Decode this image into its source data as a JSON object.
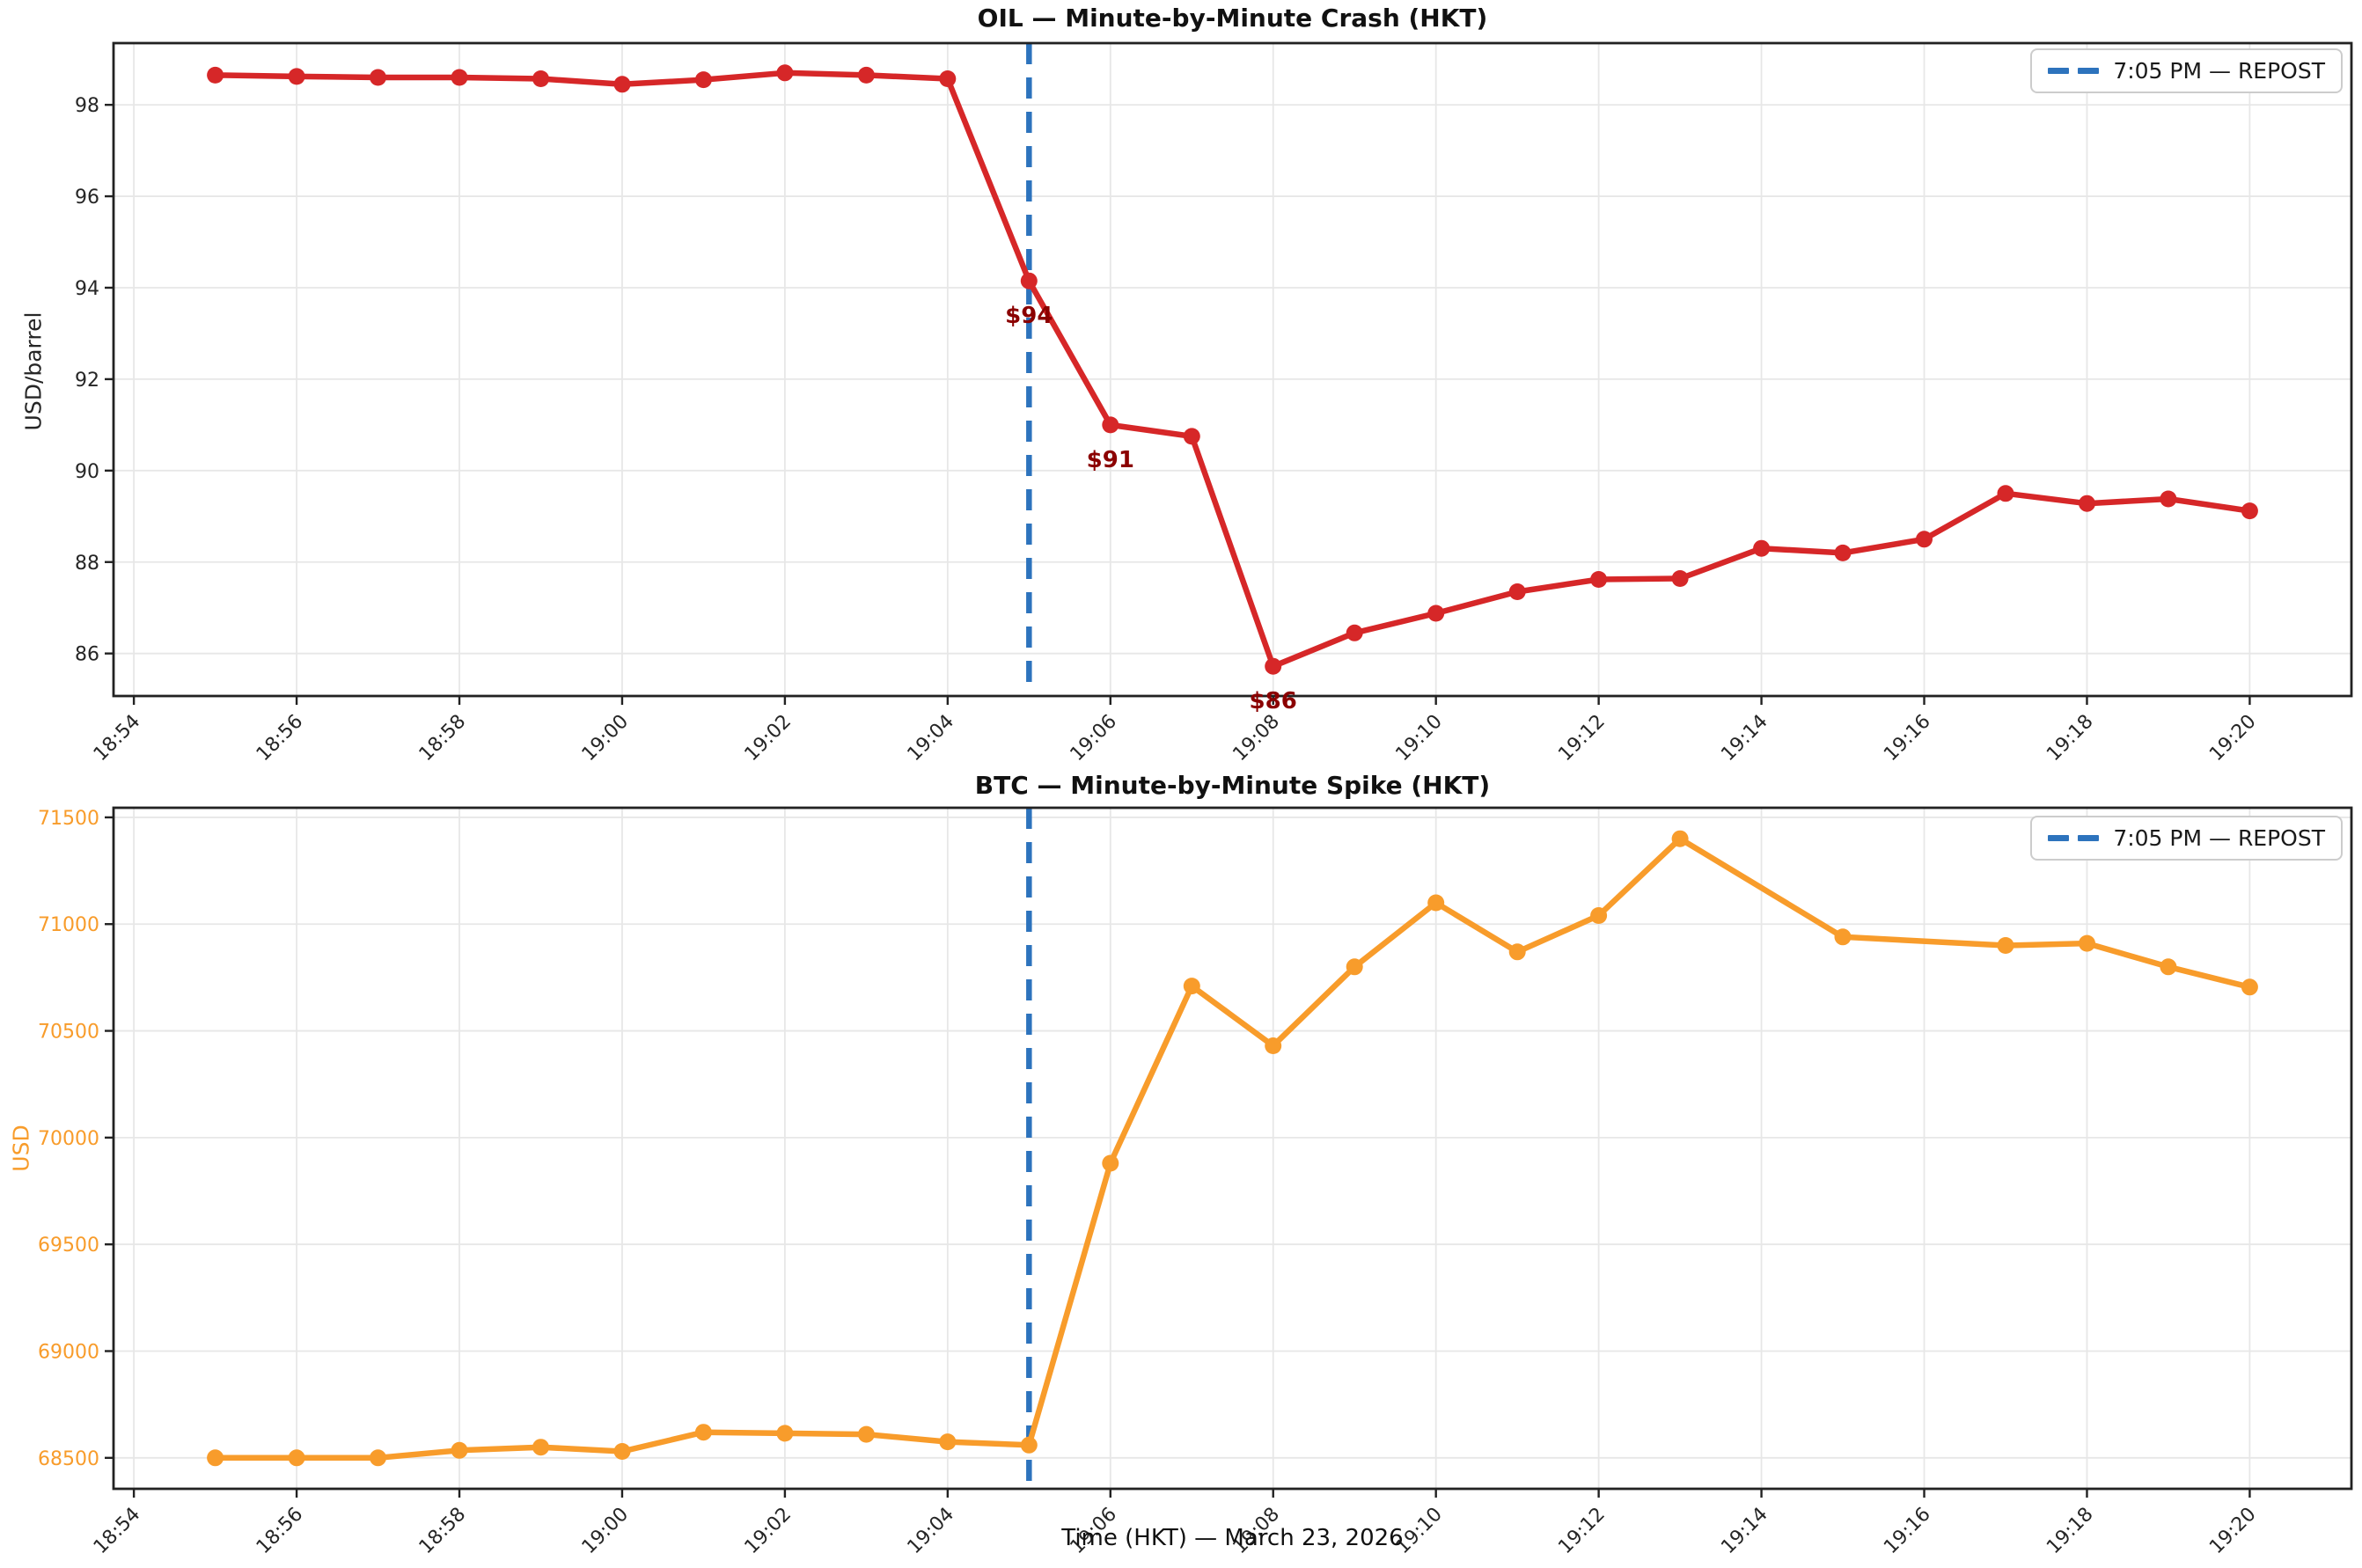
{
  "figure": {
    "xlabel": "Time (HKT) — March 23, 2026",
    "x_tick_labels": [
      "18:54",
      "18:56",
      "18:58",
      "19:00",
      "19:02",
      "19:04",
      "19:06",
      "19:08",
      "19:10",
      "19:12",
      "19:14",
      "19:16",
      "19:18",
      "19:20"
    ],
    "colors": {
      "background": "#ffffff",
      "grid": "#e7e7e7",
      "axis": "#222222",
      "tick_text": "#262626",
      "vline": "#2d73bd",
      "annotation": "#8b0000",
      "legend_border": "#cccccc",
      "legend_text": "#1a1a1a"
    }
  },
  "chart_data": [
    {
      "type": "line",
      "title": "OIL — Minute-by-Minute Crash (HKT)",
      "ylabel": "USD/barrel",
      "line_color": "#d62728",
      "tick_label_color": "#262626",
      "x_times": [
        "18:55",
        "18:56",
        "18:57",
        "18:58",
        "18:59",
        "19:00",
        "19:01",
        "19:02",
        "19:03",
        "19:04",
        "19:05",
        "19:06",
        "19:07",
        "19:08",
        "19:09",
        "19:10",
        "19:11",
        "19:12",
        "19:13",
        "19:14",
        "19:15",
        "19:16",
        "19:17",
        "19:18",
        "19:19",
        "19:20"
      ],
      "values": [
        98.65,
        98.62,
        98.6,
        98.6,
        98.57,
        98.45,
        98.55,
        98.7,
        98.65,
        98.57,
        94.15,
        91.0,
        90.75,
        85.72,
        86.45,
        86.88,
        87.35,
        87.62,
        87.64,
        88.3,
        88.2,
        88.5,
        89.5,
        89.28,
        89.38,
        89.12
      ],
      "y_ticks": [
        86,
        88,
        90,
        92,
        94,
        96,
        98
      ],
      "ylim": [
        85.07,
        99.35
      ],
      "grid": true,
      "legend_label": "7:05 PM — REPOST",
      "legend_position": "upper right",
      "vline_time": "19:05",
      "annotations": [
        {
          "text": "$94",
          "time": "19:05",
          "value": 94.15
        },
        {
          "text": "$91",
          "time": "19:06",
          "value": 91.0
        },
        {
          "text": "$86",
          "time": "19:08",
          "value": 85.72
        }
      ]
    },
    {
      "type": "line",
      "title": "BTC — Minute-by-Minute Spike (HKT)",
      "ylabel": "USD",
      "line_color": "#f89c2b",
      "tick_label_color": "#f89c2b",
      "x_times": [
        "18:55",
        "18:56",
        "18:57",
        "18:58",
        "18:59",
        "19:00",
        "19:01",
        "19:02",
        "19:03",
        "19:04",
        "19:05",
        "19:06",
        "19:07",
        "19:08",
        "19:09",
        "19:10",
        "19:11",
        "19:12",
        "19:13",
        "19:15",
        "19:17",
        "19:18",
        "19:19",
        "19:20"
      ],
      "values": [
        68500,
        68500,
        68500,
        68535,
        68550,
        68530,
        68620,
        68615,
        68610,
        68575,
        68560,
        69880,
        70710,
        70430,
        70800,
        71100,
        70870,
        71040,
        71400,
        70940,
        70900,
        70910,
        70800,
        70705
      ],
      "y_ticks": [
        68500,
        69000,
        69500,
        70000,
        70500,
        71000,
        71500
      ],
      "ylim": [
        68355,
        71545
      ],
      "grid": true,
      "legend_label": "7:05 PM — REPOST",
      "legend_position": "upper right",
      "vline_time": "19:05",
      "annotations": []
    }
  ]
}
